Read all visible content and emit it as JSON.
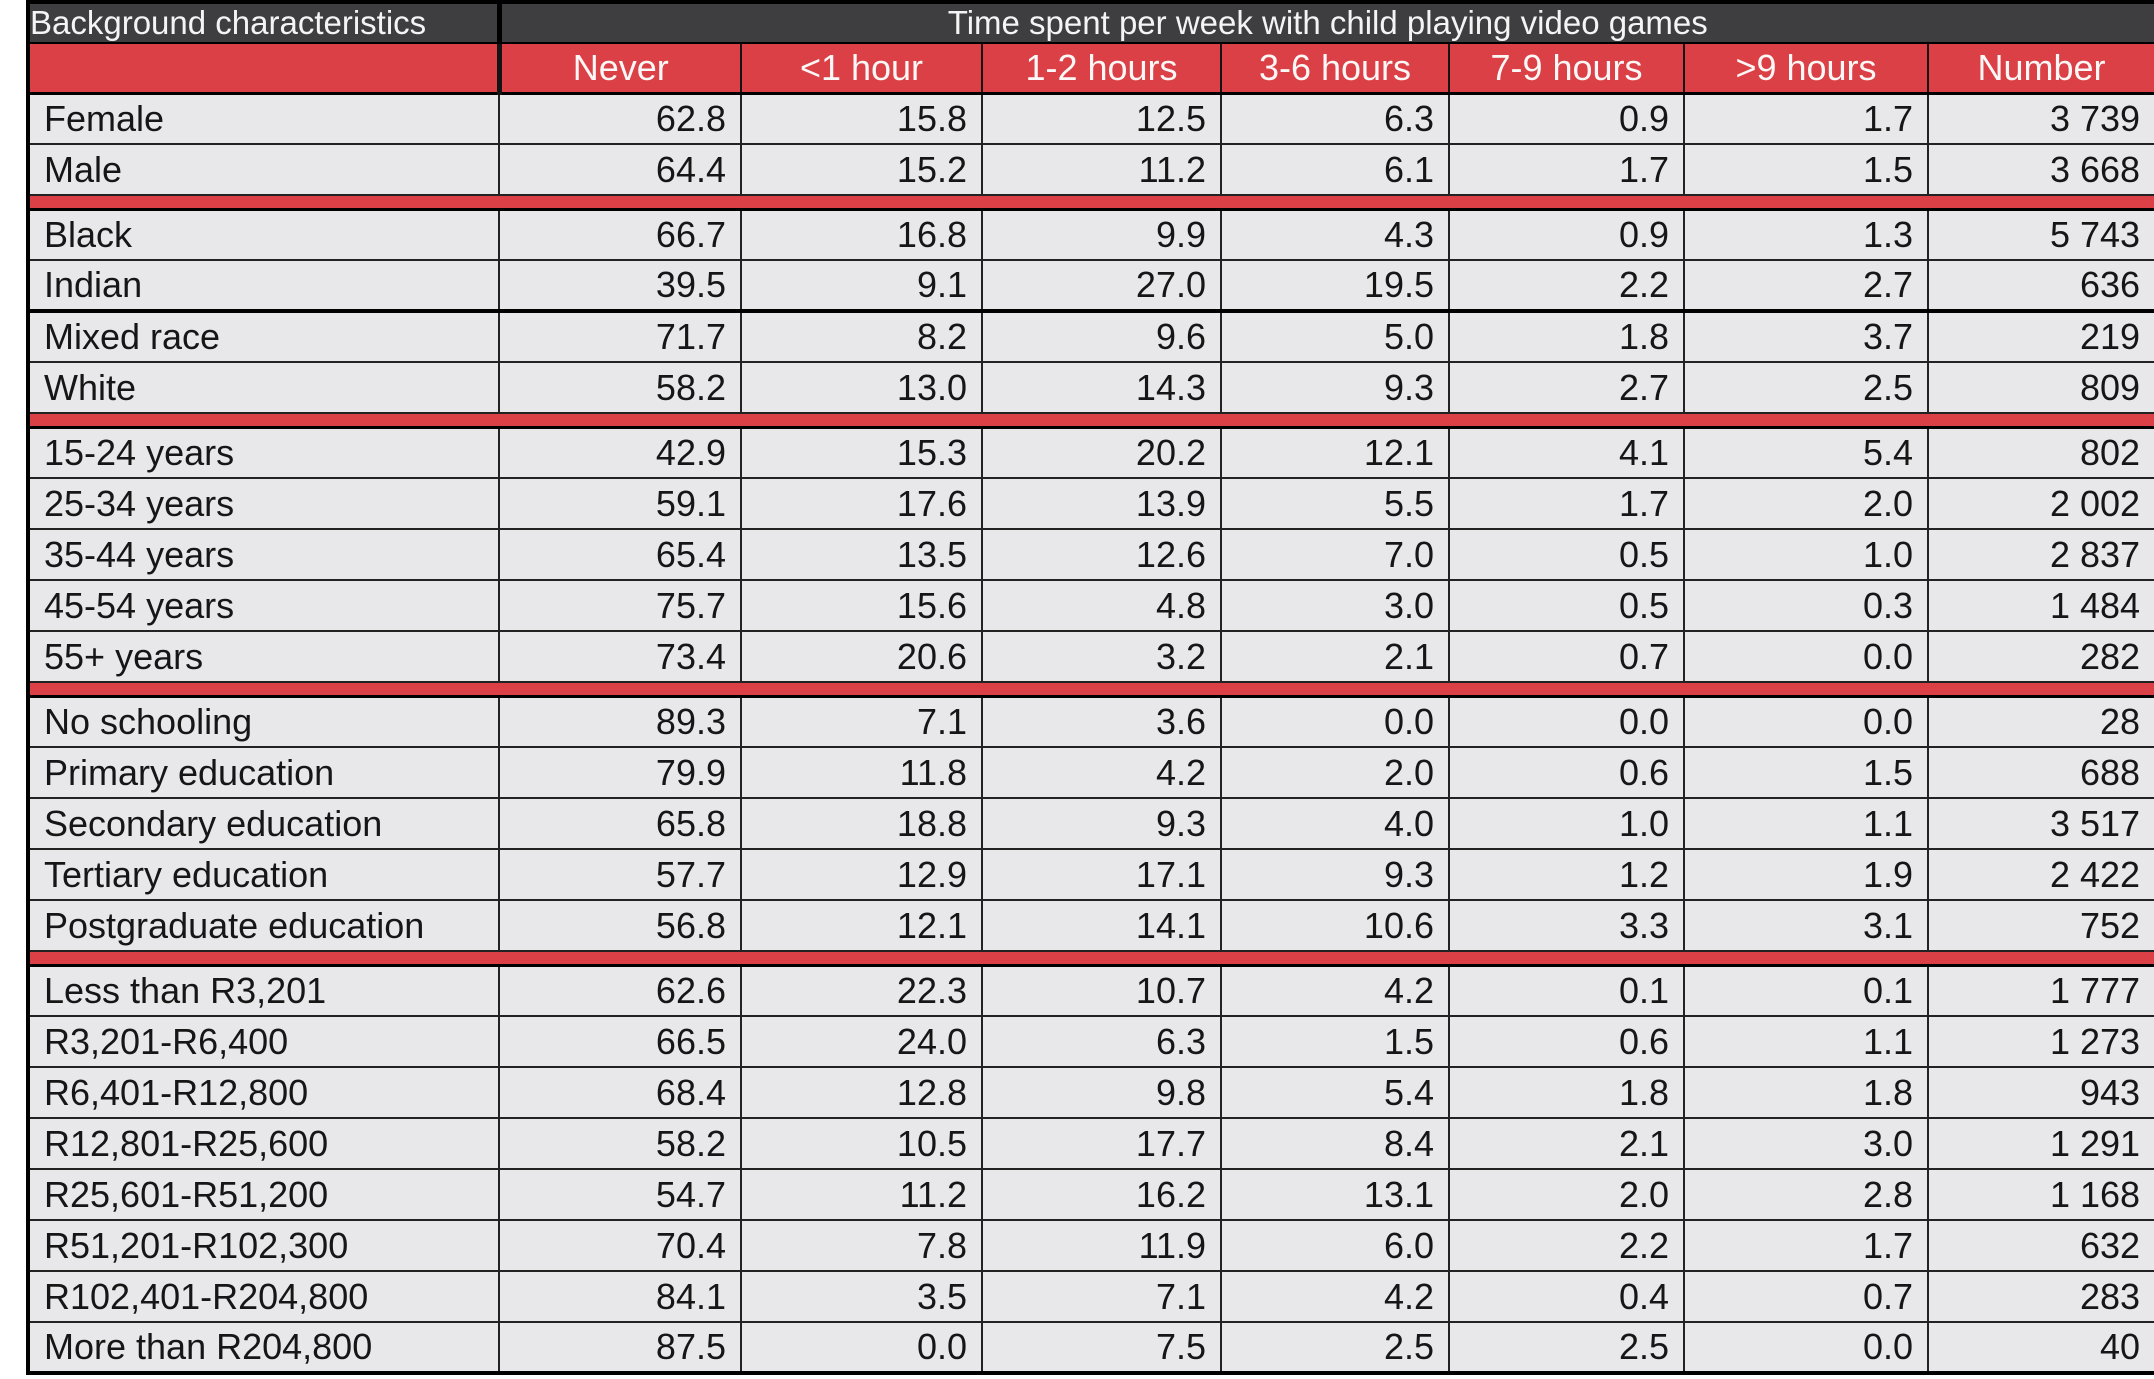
{
  "colors": {
    "accent_red": "#DA4045",
    "header_dark": "#3E3E40",
    "row_background": "#E8E8EA",
    "grid_line": "#222222",
    "header_text": "#FFFFFF",
    "body_text": "#161616"
  },
  "chart_data": {
    "type": "table",
    "title": "Time spent per week with child playing video games",
    "row_header_label": "Background characteristics",
    "columns": [
      "Never",
      "<1 hour",
      "1-2 hours",
      "3-6 hours",
      "7-9 hours",
      ">9 hours",
      "Number"
    ],
    "groups": [
      {
        "rows": [
          {
            "label": "Female",
            "values": [
              "62.8",
              "15.8",
              "12.5",
              "6.3",
              "0.9",
              "1.7",
              "3 739"
            ]
          },
          {
            "label": "Male",
            "values": [
              "64.4",
              "15.2",
              "11.2",
              "6.1",
              "1.7",
              "1.5",
              "3 668"
            ]
          }
        ]
      },
      {
        "rows": [
          {
            "label": "Black",
            "values": [
              "66.7",
              "16.8",
              "9.9",
              "4.3",
              "0.9",
              "1.3",
              "5 743"
            ]
          },
          {
            "label": "Indian",
            "values": [
              "39.5",
              "9.1",
              "27.0",
              "19.5",
              "2.2",
              "2.7",
              "636"
            ],
            "heavy_rule_below": true
          },
          {
            "label": "Mixed race",
            "values": [
              "71.7",
              "8.2",
              "9.6",
              "5.0",
              "1.8",
              "3.7",
              "219"
            ]
          },
          {
            "label": "White",
            "values": [
              "58.2",
              "13.0",
              "14.3",
              "9.3",
              "2.7",
              "2.5",
              "809"
            ]
          }
        ]
      },
      {
        "rows": [
          {
            "label": "15-24 years",
            "values": [
              "42.9",
              "15.3",
              "20.2",
              "12.1",
              "4.1",
              "5.4",
              "802"
            ]
          },
          {
            "label": "25-34 years",
            "values": [
              "59.1",
              "17.6",
              "13.9",
              "5.5",
              "1.7",
              "2.0",
              "2 002"
            ]
          },
          {
            "label": "35-44 years",
            "values": [
              "65.4",
              "13.5",
              "12.6",
              "7.0",
              "0.5",
              "1.0",
              "2 837"
            ]
          },
          {
            "label": "45-54 years",
            "values": [
              "75.7",
              "15.6",
              "4.8",
              "3.0",
              "0.5",
              "0.3",
              "1 484"
            ]
          },
          {
            "label": "55+ years",
            "values": [
              "73.4",
              "20.6",
              "3.2",
              "2.1",
              "0.7",
              "0.0",
              "282"
            ]
          }
        ]
      },
      {
        "rows": [
          {
            "label": "No schooling",
            "values": [
              "89.3",
              "7.1",
              "3.6",
              "0.0",
              "0.0",
              "0.0",
              "28"
            ]
          },
          {
            "label": "Primary education",
            "values": [
              "79.9",
              "11.8",
              "4.2",
              "2.0",
              "0.6",
              "1.5",
              "688"
            ]
          },
          {
            "label": "Secondary education",
            "values": [
              "65.8",
              "18.8",
              "9.3",
              "4.0",
              "1.0",
              "1.1",
              "3 517"
            ]
          },
          {
            "label": "Tertiary education",
            "values": [
              "57.7",
              "12.9",
              "17.1",
              "9.3",
              "1.2",
              "1.9",
              "2 422"
            ]
          },
          {
            "label": "Postgraduate education",
            "values": [
              "56.8",
              "12.1",
              "14.1",
              "10.6",
              "3.3",
              "3.1",
              "752"
            ]
          }
        ]
      },
      {
        "rows": [
          {
            "label": "Less than R3,201",
            "values": [
              "62.6",
              "22.3",
              "10.7",
              "4.2",
              "0.1",
              "0.1",
              "1 777"
            ]
          },
          {
            "label": "R3,201-R6,400",
            "values": [
              "66.5",
              "24.0",
              "6.3",
              "1.5",
              "0.6",
              "1.1",
              "1 273"
            ]
          },
          {
            "label": "R6,401-R12,800",
            "values": [
              "68.4",
              "12.8",
              "9.8",
              "5.4",
              "1.8",
              "1.8",
              "943"
            ]
          },
          {
            "label": "R12,801-R25,600",
            "values": [
              "58.2",
              "10.5",
              "17.7",
              "8.4",
              "2.1",
              "3.0",
              "1 291"
            ]
          },
          {
            "label": "R25,601-R51,200",
            "values": [
              "54.7",
              "11.2",
              "16.2",
              "13.1",
              "2.0",
              "2.8",
              "1 168"
            ]
          },
          {
            "label": "R51,201-R102,300",
            "values": [
              "70.4",
              "7.8",
              "11.9",
              "6.0",
              "2.2",
              "1.7",
              "632"
            ]
          },
          {
            "label": "R102,401-R204,800",
            "values": [
              "84.1",
              "3.5",
              "7.1",
              "4.2",
              "0.4",
              "0.7",
              "283"
            ]
          },
          {
            "label": "More than R204,800",
            "values": [
              "87.5",
              "0.0",
              "7.5",
              "2.5",
              "2.5",
              "0.0",
              "40"
            ]
          }
        ]
      }
    ]
  }
}
